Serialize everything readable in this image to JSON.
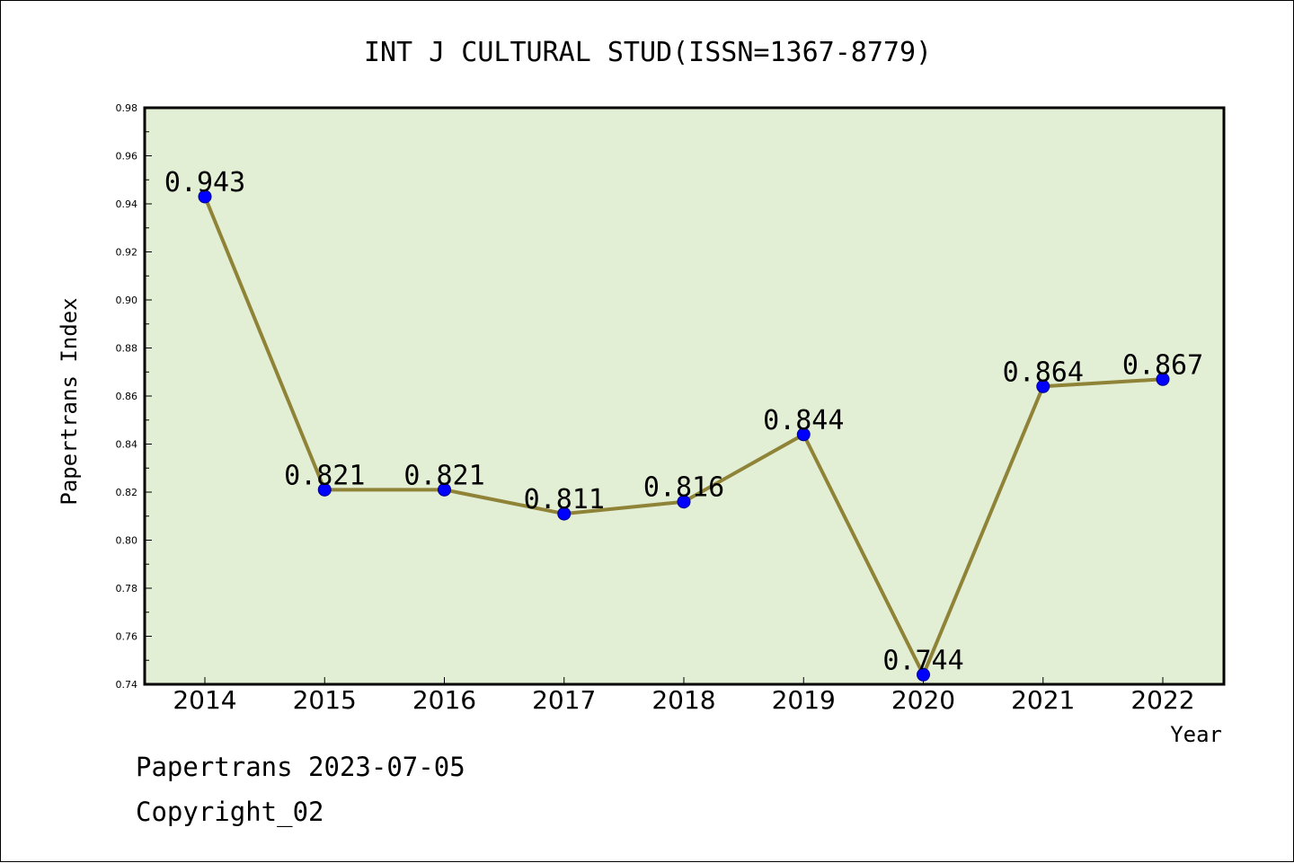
{
  "chart_data": {
    "type": "line",
    "title": "INT J CULTURAL STUD(ISSN=1367-8779)",
    "xlabel": "Year",
    "ylabel": "Papertrans Index",
    "categories": [
      "2014",
      "2015",
      "2016",
      "2017",
      "2018",
      "2019",
      "2020",
      "2021",
      "2022"
    ],
    "series": [
      {
        "values": [
          0.943,
          0.821,
          0.821,
          0.811,
          0.816,
          0.844,
          0.744,
          0.864,
          0.867
        ],
        "data_labels": [
          "0.943",
          "0.821",
          "0.821",
          "0.811",
          "0.816",
          "0.844",
          "0.744",
          "0.864",
          "0.867"
        ]
      }
    ],
    "ylim": [
      0.74,
      0.98
    ],
    "yticks": [
      "0.74",
      "0.76",
      "0.78",
      "0.80",
      "0.82",
      "0.84",
      "0.86",
      "0.88",
      "0.90",
      "0.92",
      "0.94",
      "0.96",
      "0.98"
    ],
    "grid": false,
    "legend": "none",
    "colors": {
      "plot_background": "#e2efd4",
      "line": "#8f8338",
      "marker": "#0000ff"
    }
  },
  "footer": {
    "line1": "Papertrans 2023-07-05",
    "line2": "Copyright_02"
  }
}
